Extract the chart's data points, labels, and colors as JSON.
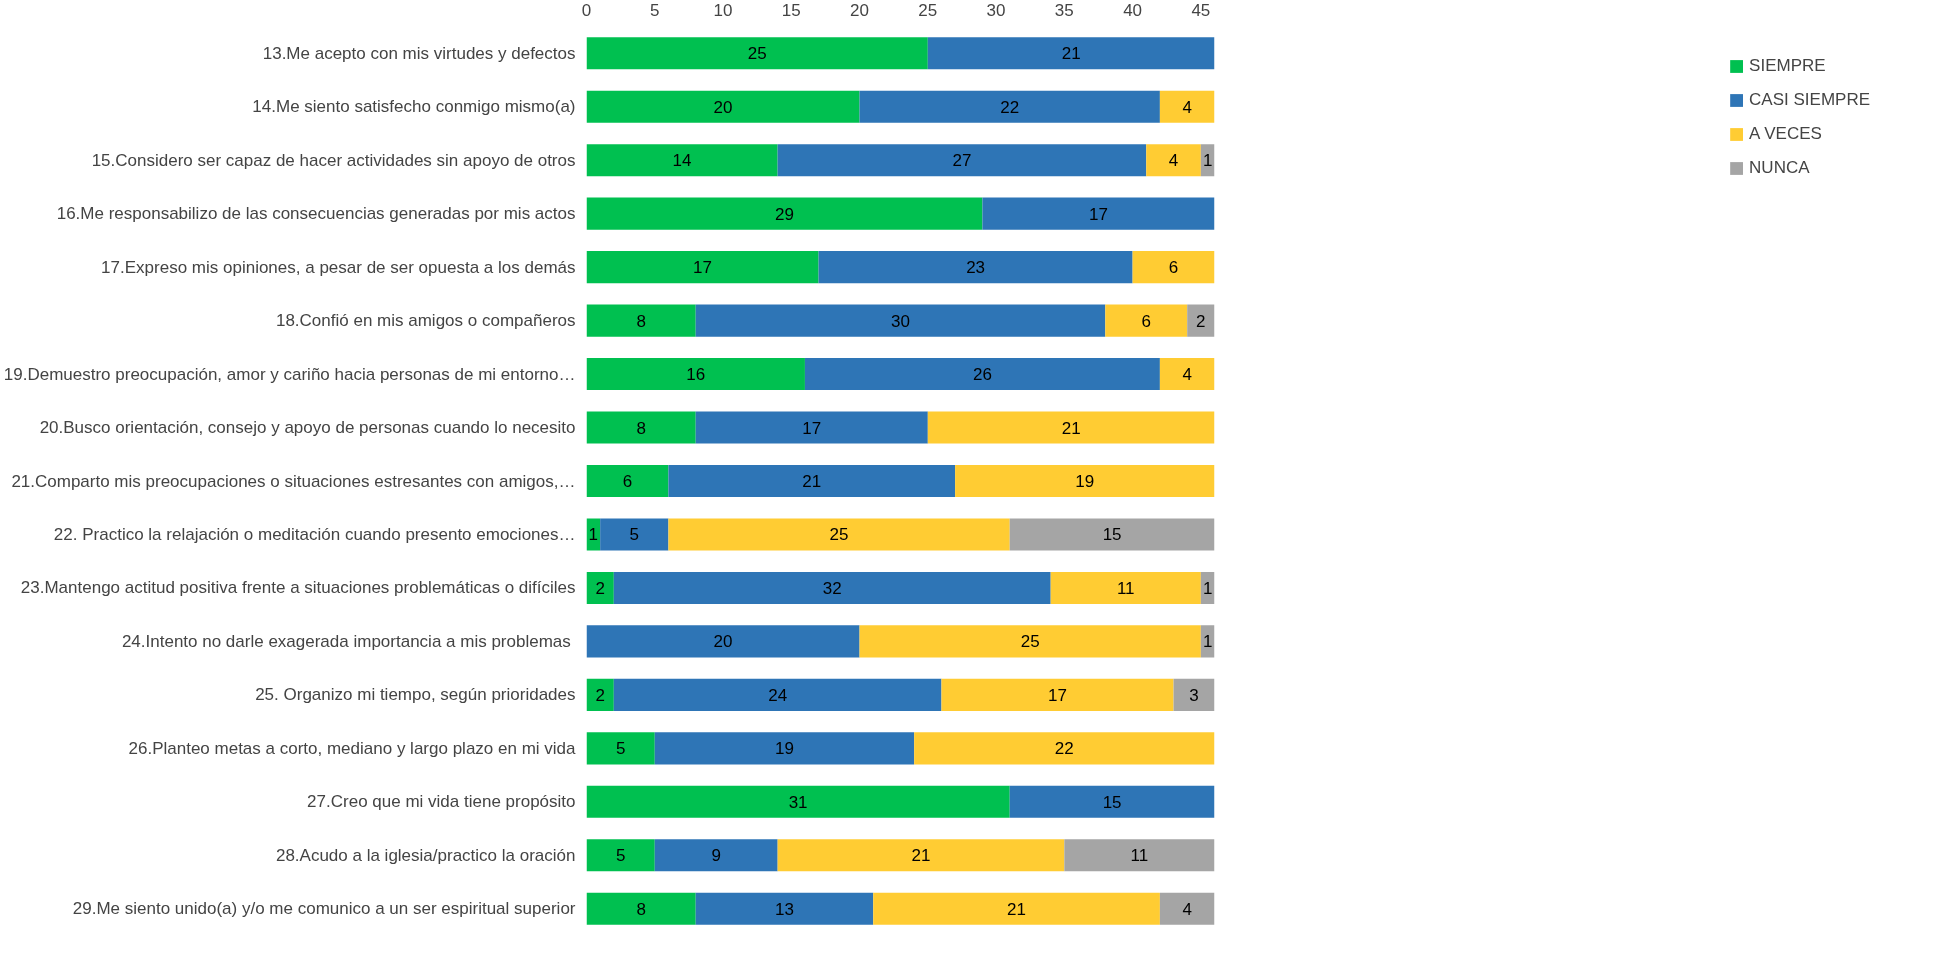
{
  "chart_data": {
    "type": "bar",
    "orientation": "horizontal",
    "stacked": true,
    "data_labels": true,
    "grid": false,
    "legend": "right",
    "categories": [
      "13.Me acepto con mis virtudes y defectos",
      "14.Me siento satisfecho conmigo mismo(a)",
      "15.Considero ser capaz de hacer actividades sin apoyo de otros",
      "16.Me responsabilizo de las consecuencias generadas por mis actos",
      "17.Expreso mis opiniones, a pesar de ser opuesta a los demás",
      "18.Confió en mis amigos o compañeros",
      "19.Demuestro preocupación, amor y cariño hacia personas de mi entorno…",
      "20.Busco orientación, consejo y apoyo de personas cuando lo necesito",
      "21.Comparto mis preocupaciones o situaciones estresantes con amigos,…",
      "22. Practico la relajación o meditación cuando presento emociones…",
      "23.Mantengo actitud positiva frente a situaciones problemáticas o difíciles",
      "24.Intento no darle  exagerada importancia a mis problemas",
      "25. Organizo mi tiempo, según prioridades",
      "26.Planteo metas a corto, mediano y largo plazo en mi vida",
      "27.Creo que mi vida tiene propósito",
      "28.Acudo a la iglesia/practico la oración",
      "29.Me siento unido(a) y/o me comunico a un ser espiritual superior"
    ],
    "xlim": [
      0,
      46
    ],
    "xticks": [
      0,
      5,
      10,
      15,
      20,
      25,
      30,
      35,
      40,
      45
    ],
    "series": [
      {
        "name": "SIEMPRE",
        "color": "#00c050",
        "values": [
          25,
          20,
          14,
          29,
          17,
          8,
          16,
          8,
          6,
          1,
          2,
          null,
          2,
          5,
          31,
          5,
          8
        ]
      },
      {
        "name": "CASI SIEMPRE",
        "color": "#2e75b6",
        "values": [
          21,
          22,
          27,
          17,
          23,
          30,
          26,
          17,
          21,
          5,
          32,
          20,
          24,
          19,
          15,
          9,
          13
        ]
      },
      {
        "name": "A VECES",
        "color": "#ffcc33",
        "values": [
          null,
          4,
          4,
          null,
          6,
          6,
          4,
          21,
          19,
          25,
          11,
          25,
          17,
          22,
          null,
          21,
          21
        ]
      },
      {
        "name": "NUNCA",
        "color": "#a5a5a5",
        "values": [
          null,
          null,
          1,
          null,
          null,
          2,
          null,
          null,
          null,
          15,
          1,
          1,
          3,
          null,
          null,
          11,
          4
        ]
      }
    ]
  }
}
